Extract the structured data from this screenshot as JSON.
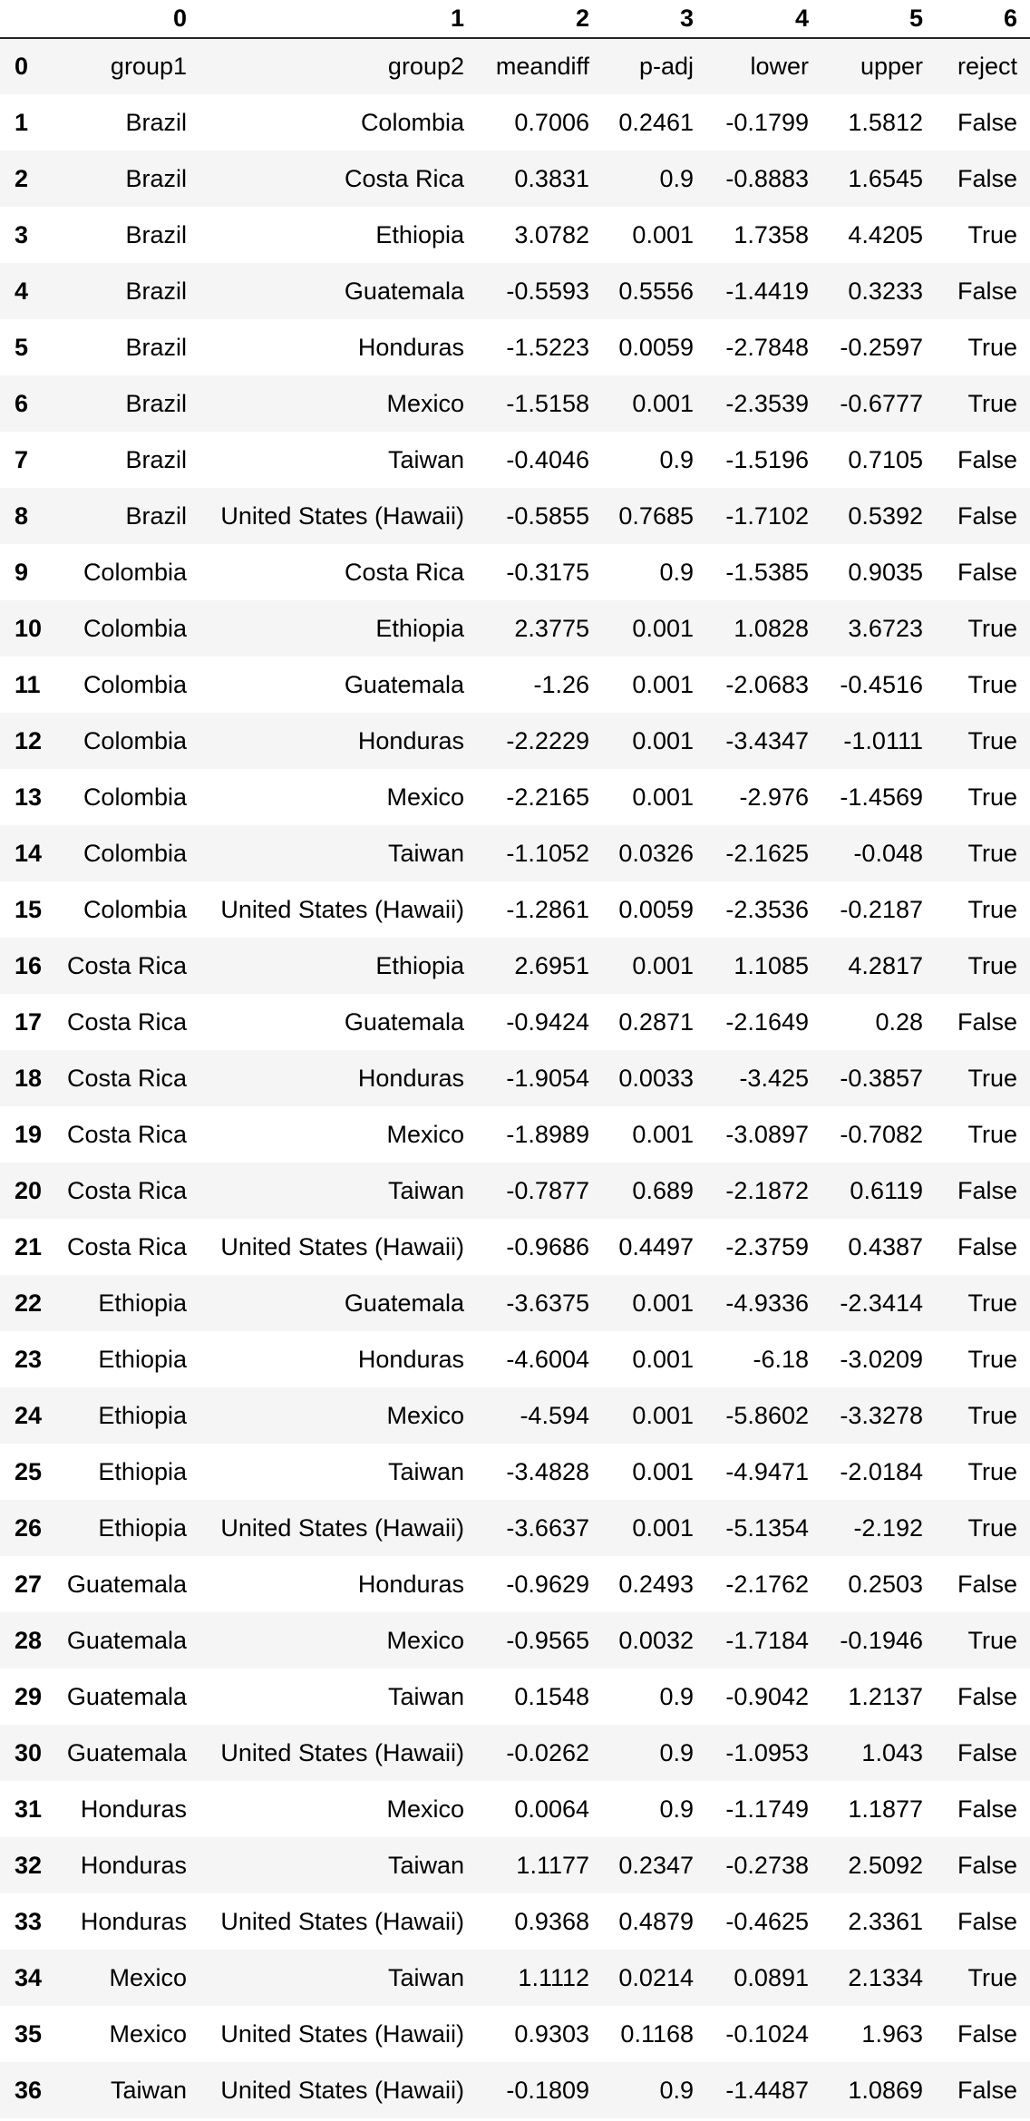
{
  "table": {
    "columns": [
      "0",
      "1",
      "2",
      "3",
      "4",
      "5",
      "6"
    ],
    "rows": [
      {
        "index": "0",
        "cells": [
          "group1",
          "group2",
          "meandiff",
          "p-adj",
          "lower",
          "upper",
          "reject"
        ]
      },
      {
        "index": "1",
        "cells": [
          "Brazil",
          "Colombia",
          "0.7006",
          "0.2461",
          "-0.1799",
          "1.5812",
          "False"
        ]
      },
      {
        "index": "2",
        "cells": [
          "Brazil",
          "Costa Rica",
          "0.3831",
          "0.9",
          "-0.8883",
          "1.6545",
          "False"
        ]
      },
      {
        "index": "3",
        "cells": [
          "Brazil",
          "Ethiopia",
          "3.0782",
          "0.001",
          "1.7358",
          "4.4205",
          "True"
        ]
      },
      {
        "index": "4",
        "cells": [
          "Brazil",
          "Guatemala",
          "-0.5593",
          "0.5556",
          "-1.4419",
          "0.3233",
          "False"
        ]
      },
      {
        "index": "5",
        "cells": [
          "Brazil",
          "Honduras",
          "-1.5223",
          "0.0059",
          "-2.7848",
          "-0.2597",
          "True"
        ]
      },
      {
        "index": "6",
        "cells": [
          "Brazil",
          "Mexico",
          "-1.5158",
          "0.001",
          "-2.3539",
          "-0.6777",
          "True"
        ]
      },
      {
        "index": "7",
        "cells": [
          "Brazil",
          "Taiwan",
          "-0.4046",
          "0.9",
          "-1.5196",
          "0.7105",
          "False"
        ]
      },
      {
        "index": "8",
        "cells": [
          "Brazil",
          "United States (Hawaii)",
          "-0.5855",
          "0.7685",
          "-1.7102",
          "0.5392",
          "False"
        ]
      },
      {
        "index": "9",
        "cells": [
          "Colombia",
          "Costa Rica",
          "-0.3175",
          "0.9",
          "-1.5385",
          "0.9035",
          "False"
        ]
      },
      {
        "index": "10",
        "cells": [
          "Colombia",
          "Ethiopia",
          "2.3775",
          "0.001",
          "1.0828",
          "3.6723",
          "True"
        ]
      },
      {
        "index": "11",
        "cells": [
          "Colombia",
          "Guatemala",
          "-1.26",
          "0.001",
          "-2.0683",
          "-0.4516",
          "True"
        ]
      },
      {
        "index": "12",
        "cells": [
          "Colombia",
          "Honduras",
          "-2.2229",
          "0.001",
          "-3.4347",
          "-1.0111",
          "True"
        ]
      },
      {
        "index": "13",
        "cells": [
          "Colombia",
          "Mexico",
          "-2.2165",
          "0.001",
          "-2.976",
          "-1.4569",
          "True"
        ]
      },
      {
        "index": "14",
        "cells": [
          "Colombia",
          "Taiwan",
          "-1.1052",
          "0.0326",
          "-2.1625",
          "-0.048",
          "True"
        ]
      },
      {
        "index": "15",
        "cells": [
          "Colombia",
          "United States (Hawaii)",
          "-1.2861",
          "0.0059",
          "-2.3536",
          "-0.2187",
          "True"
        ]
      },
      {
        "index": "16",
        "cells": [
          "Costa Rica",
          "Ethiopia",
          "2.6951",
          "0.001",
          "1.1085",
          "4.2817",
          "True"
        ]
      },
      {
        "index": "17",
        "cells": [
          "Costa Rica",
          "Guatemala",
          "-0.9424",
          "0.2871",
          "-2.1649",
          "0.28",
          "False"
        ]
      },
      {
        "index": "18",
        "cells": [
          "Costa Rica",
          "Honduras",
          "-1.9054",
          "0.0033",
          "-3.425",
          "-0.3857",
          "True"
        ]
      },
      {
        "index": "19",
        "cells": [
          "Costa Rica",
          "Mexico",
          "-1.8989",
          "0.001",
          "-3.0897",
          "-0.7082",
          "True"
        ]
      },
      {
        "index": "20",
        "cells": [
          "Costa Rica",
          "Taiwan",
          "-0.7877",
          "0.689",
          "-2.1872",
          "0.6119",
          "False"
        ]
      },
      {
        "index": "21",
        "cells": [
          "Costa Rica",
          "United States (Hawaii)",
          "-0.9686",
          "0.4497",
          "-2.3759",
          "0.4387",
          "False"
        ]
      },
      {
        "index": "22",
        "cells": [
          "Ethiopia",
          "Guatemala",
          "-3.6375",
          "0.001",
          "-4.9336",
          "-2.3414",
          "True"
        ]
      },
      {
        "index": "23",
        "cells": [
          "Ethiopia",
          "Honduras",
          "-4.6004",
          "0.001",
          "-6.18",
          "-3.0209",
          "True"
        ]
      },
      {
        "index": "24",
        "cells": [
          "Ethiopia",
          "Mexico",
          "-4.594",
          "0.001",
          "-5.8602",
          "-3.3278",
          "True"
        ]
      },
      {
        "index": "25",
        "cells": [
          "Ethiopia",
          "Taiwan",
          "-3.4828",
          "0.001",
          "-4.9471",
          "-2.0184",
          "True"
        ]
      },
      {
        "index": "26",
        "cells": [
          "Ethiopia",
          "United States (Hawaii)",
          "-3.6637",
          "0.001",
          "-5.1354",
          "-2.192",
          "True"
        ]
      },
      {
        "index": "27",
        "cells": [
          "Guatemala",
          "Honduras",
          "-0.9629",
          "0.2493",
          "-2.1762",
          "0.2503",
          "False"
        ]
      },
      {
        "index": "28",
        "cells": [
          "Guatemala",
          "Mexico",
          "-0.9565",
          "0.0032",
          "-1.7184",
          "-0.1946",
          "True"
        ]
      },
      {
        "index": "29",
        "cells": [
          "Guatemala",
          "Taiwan",
          "0.1548",
          "0.9",
          "-0.9042",
          "1.2137",
          "False"
        ]
      },
      {
        "index": "30",
        "cells": [
          "Guatemala",
          "United States (Hawaii)",
          "-0.0262",
          "0.9",
          "-1.0953",
          "1.043",
          "False"
        ]
      },
      {
        "index": "31",
        "cells": [
          "Honduras",
          "Mexico",
          "0.0064",
          "0.9",
          "-1.1749",
          "1.1877",
          "False"
        ]
      },
      {
        "index": "32",
        "cells": [
          "Honduras",
          "Taiwan",
          "1.1177",
          "0.2347",
          "-0.2738",
          "2.5092",
          "False"
        ]
      },
      {
        "index": "33",
        "cells": [
          "Honduras",
          "United States (Hawaii)",
          "0.9368",
          "0.4879",
          "-0.4625",
          "2.3361",
          "False"
        ]
      },
      {
        "index": "34",
        "cells": [
          "Mexico",
          "Taiwan",
          "1.1112",
          "0.0214",
          "0.0891",
          "2.1334",
          "True"
        ]
      },
      {
        "index": "35",
        "cells": [
          "Mexico",
          "United States (Hawaii)",
          "0.9303",
          "0.1168",
          "-0.1024",
          "1.963",
          "False"
        ]
      },
      {
        "index": "36",
        "cells": [
          "Taiwan",
          "United States (Hawaii)",
          "-0.1809",
          "0.9",
          "-1.4487",
          "1.0869",
          "False"
        ]
      }
    ]
  }
}
